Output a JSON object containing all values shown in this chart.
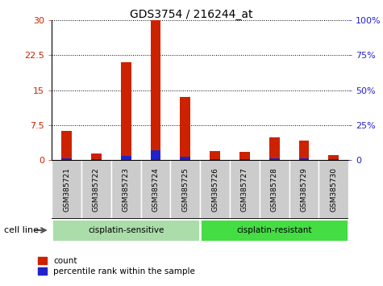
{
  "title": "GDS3754 / 216244_at",
  "samples": [
    "GSM385721",
    "GSM385722",
    "GSM385723",
    "GSM385724",
    "GSM385725",
    "GSM385726",
    "GSM385727",
    "GSM385728",
    "GSM385729",
    "GSM385730"
  ],
  "count_values": [
    6.2,
    1.5,
    21.0,
    30.0,
    13.5,
    2.0,
    1.8,
    4.8,
    4.2,
    1.0
  ],
  "percentile_values": [
    1.5,
    0.5,
    3.0,
    7.0,
    2.5,
    0.5,
    0.5,
    1.5,
    1.5,
    0.5
  ],
  "groups": [
    {
      "label": "cisplatin-sensitive",
      "start": 0,
      "end": 5,
      "color": "#aaddaa"
    },
    {
      "label": "cisplatin-resistant",
      "start": 5,
      "end": 10,
      "color": "#44dd44"
    }
  ],
  "bar_width": 0.35,
  "count_color": "#cc2200",
  "percentile_color": "#2222cc",
  "ylim_left": [
    0,
    30
  ],
  "ylim_right": [
    0,
    100
  ],
  "yticks_left": [
    0,
    7.5,
    15,
    22.5,
    30
  ],
  "yticks_right": [
    0,
    25,
    50,
    75,
    100
  ],
  "ytick_labels_left": [
    "0",
    "7.5",
    "15",
    "22.5",
    "30"
  ],
  "ytick_labels_right": [
    "0",
    "25%",
    "50%",
    "75%",
    "100%"
  ],
  "ylabel_left_color": "#cc2200",
  "ylabel_right_color": "#2222cc",
  "background_color": "#ffffff",
  "cell_line_label": "cell line",
  "legend_count": "count",
  "legend_percentile": "percentile rank within the sample",
  "xtick_bg_color": "#cccccc",
  "group_border_color": "#000000"
}
